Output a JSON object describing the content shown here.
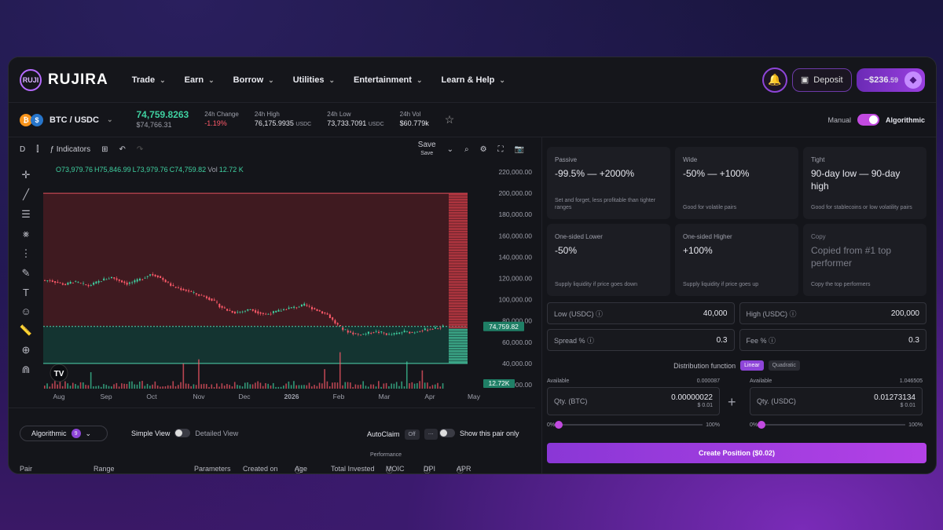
{
  "brand": {
    "name": "RUJIRA",
    "mark": "RUJI"
  },
  "nav": {
    "items": [
      "Trade",
      "Earn",
      "Borrow",
      "Utilities",
      "Entertainment",
      "Learn & Help"
    ],
    "deposit": "Deposit",
    "balance": "~$236",
    "balance_cents": ".59"
  },
  "ticker": {
    "pair": "BTC / USDC",
    "price": "74,759.8263",
    "price_usd": "$74,766.31",
    "change_label": "24h Change",
    "change": "-1.19%",
    "high_label": "24h High",
    "high": "76,175.9935",
    "high_unit": "USDC",
    "low_label": "24h Low",
    "low": "73,733.7091",
    "low_unit": "USDC",
    "vol_label": "24h Vol",
    "vol": "$60.779k",
    "mode_manual": "Manual",
    "mode_algo": "Algorithmic"
  },
  "chart_toolbar": {
    "interval": "D",
    "indicators": "Indicators",
    "save": "Save",
    "save_sub": "Save"
  },
  "ohlc": {
    "o": "O73,979.76",
    "h": "H75,846.99",
    "l": "L73,979.76",
    "c": "C74,759.82",
    "vol": "Vol",
    "vol_value": "12.72 K"
  },
  "chart_data": {
    "type": "candlestick",
    "y_ticks": [
      "220,000.00",
      "200,000.00",
      "180,000.00",
      "160,000.00",
      "140,000.00",
      "120,000.00",
      "100,000.00",
      "80,000.00",
      "60,000.00",
      "40,000.00",
      "20,000.00"
    ],
    "x_ticks": [
      "Aug",
      "Sep",
      "Oct",
      "Nov",
      "Dec",
      "2026",
      "Feb",
      "Mar",
      "Apr",
      "May"
    ],
    "ylim": [
      20000,
      220000
    ],
    "range_high": 200000,
    "range_low": 40000,
    "last_price_label": "74,759.82",
    "volume_label": "12.72K",
    "price_path": [
      118000,
      116000,
      114000,
      117000,
      115000,
      113000,
      116000,
      119000,
      121000,
      118000,
      115000,
      117000,
      120000,
      124000,
      122000,
      117000,
      112000,
      110000,
      108000,
      105000,
      103000,
      100000,
      94000,
      90000,
      88000,
      89000,
      91000,
      88000,
      86000,
      88000,
      90000,
      92000,
      93000,
      95000,
      92000,
      89000,
      86000,
      78000,
      72000,
      69000,
      67000,
      68000,
      70000,
      69000,
      67000,
      68000,
      70000,
      69000,
      71000,
      72000,
      73000,
      74760
    ]
  },
  "bottom": {
    "algo": "Algorithmic",
    "algo_count": "9",
    "simple": "Simple View",
    "detailed": "Detailed View",
    "autoclaim": "AutoClaim",
    "autoclaim_state": "Off",
    "show_pair": "Show this pair only",
    "performance": "Performance",
    "cols": [
      "Pair",
      "Range",
      "Parameters",
      "Created on",
      "Age",
      "Total Invested",
      "MOIC",
      "DPI",
      "APR"
    ]
  },
  "cards": [
    {
      "title": "Passive",
      "main": "-99.5% — +2000%",
      "desc": "Set and forget, less profitable than tighter ranges"
    },
    {
      "title": "Wide",
      "main": "-50% — +100%",
      "desc": "Good for volatile pairs"
    },
    {
      "title": "Tight",
      "main": "90-day low — 90-day high",
      "desc": "Good for stablecoins or low volatility pairs"
    },
    {
      "title": "One-sided Lower",
      "main": "-50%",
      "desc": "Supply liquidity if price goes down"
    },
    {
      "title": "One-sided Higher",
      "main": "+100%",
      "desc": "Supply liquidity if price goes up"
    },
    {
      "title": "Copy",
      "main": "Copied from #1 top performer",
      "desc": "Copy the top performers"
    }
  ],
  "inputs": {
    "low_label": "Low (USDC)",
    "low": "40,000",
    "high_label": "High (USDC)",
    "high": "200,000",
    "spread_label": "Spread %",
    "spread": "0.3",
    "fee_label": "Fee %",
    "fee": "0.3"
  },
  "distribution": {
    "label": "Distribution function",
    "linear": "Linear",
    "quadratic": "Quadratic"
  },
  "qty": {
    "btc": {
      "available": "Available",
      "avail_val": "0.000087",
      "label": "Qty. (BTC)",
      "value": "0.00000022",
      "usd": "$ 0.01"
    },
    "usdc": {
      "available": "Available",
      "avail_val": "1.046505",
      "label": "Qty. (USDC)",
      "value": "0.01273134",
      "usd": "$ 0.01"
    },
    "min": "0%",
    "max": "100%"
  },
  "cta": "Create Position ($0.02)"
}
